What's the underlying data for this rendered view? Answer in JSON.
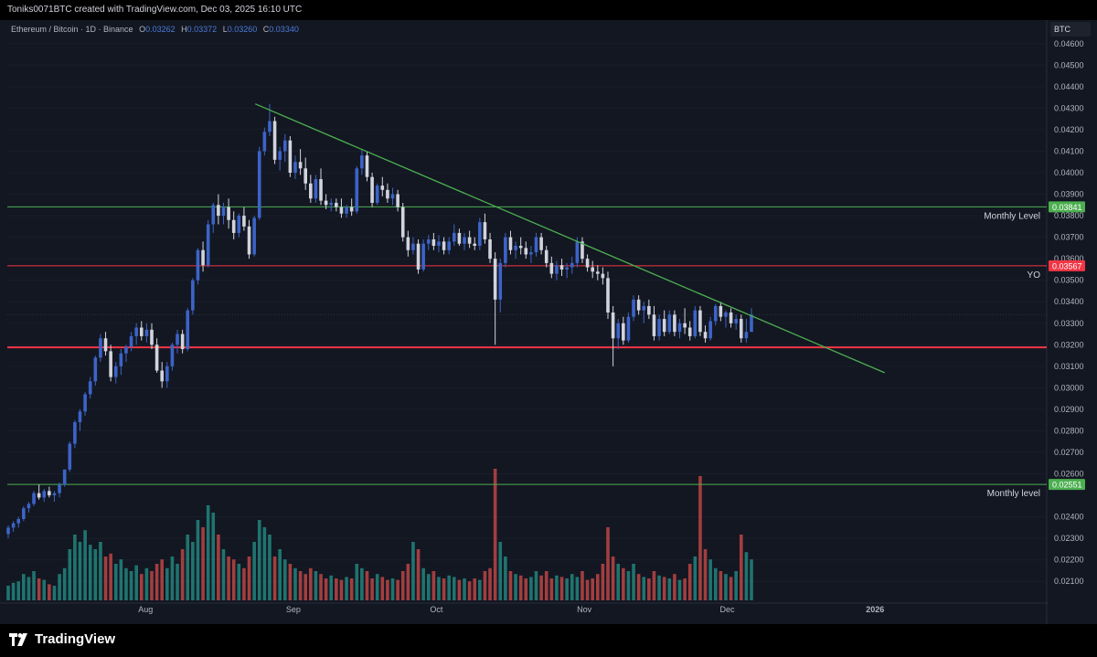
{
  "header": {
    "credit": "Toniks0071BTC created with TradingView.com, Dec 03, 2025 16:10 UTC"
  },
  "legend": {
    "symbol": "Ethereum / Bitcoin · 1D · Binance",
    "open_label": "O",
    "open": "0.03262",
    "high_label": "H",
    "high": "0.03372",
    "low_label": "L",
    "low": "0.03260",
    "close_label": "C",
    "close": "0.03340"
  },
  "brand": {
    "name": "TradingView"
  },
  "colors": {
    "background": "#131722",
    "up": "#3c64c8",
    "down": "#d1d4dc",
    "vol_up": "#26a69a",
    "vol_down": "#ef5350",
    "trend": "#4caf50"
  },
  "chart_data": {
    "type": "candlestick",
    "currency_label": "BTC",
    "ylim": [
      0.0205,
      0.0465
    ],
    "y_ticks": [
      "0.04600",
      "0.04500",
      "0.04400",
      "0.04300",
      "0.04200",
      "0.04100",
      "0.04000",
      "0.03900",
      "0.03800",
      "0.03700",
      "0.03600",
      "0.03500",
      "0.03400",
      "0.03300",
      "0.03200",
      "0.03100",
      "0.03000",
      "0.02900",
      "0.02800",
      "0.02700",
      "0.02600",
      "0.02400",
      "0.02300",
      "0.02200",
      "0.02100"
    ],
    "x_ticks": [
      {
        "label": "Aug",
        "date": "2025-08-01"
      },
      {
        "label": "Sep",
        "date": "2025-09-01"
      },
      {
        "label": "Oct",
        "date": "2025-10-01"
      },
      {
        "label": "Nov",
        "date": "2025-11-01"
      },
      {
        "label": "Dec",
        "date": "2025-12-01"
      },
      {
        "label": "2026",
        "date": "2026-01-01"
      }
    ],
    "x_start": "2025-07-03",
    "x_end": "2026-02-06",
    "levels": [
      {
        "name": "Monthly Level",
        "value": 0.03841,
        "label": "0.03841",
        "color": "#4caf50",
        "width": 1
      },
      {
        "name": "YO",
        "value": 0.03567,
        "label": "0.03567",
        "color": "#f23645",
        "width": 1
      },
      {
        "name": "",
        "value": 0.03188,
        "label": "",
        "color": "#f23645",
        "width": 2
      },
      {
        "name": "Monthly level",
        "value": 0.02551,
        "label": "0.02551",
        "color": "#4caf50",
        "width": 1
      }
    ],
    "trendline": {
      "start": {
        "date": "2025-08-24",
        "value": 0.0432
      },
      "end": {
        "date": "2026-01-03",
        "value": 0.0307
      }
    },
    "candles": [
      [
        0.0232,
        0.0236,
        0.023,
        0.0235
      ],
      [
        0.0235,
        0.0238,
        0.0233,
        0.0237
      ],
      [
        0.0237,
        0.024,
        0.0235,
        0.0239
      ],
      [
        0.0239,
        0.0245,
        0.0238,
        0.0244
      ],
      [
        0.0244,
        0.0247,
        0.0242,
        0.0246
      ],
      [
        0.0246,
        0.0252,
        0.0245,
        0.0251
      ],
      [
        0.0251,
        0.0255,
        0.0248,
        0.0249
      ],
      [
        0.0249,
        0.0253,
        0.0247,
        0.0252
      ],
      [
        0.0252,
        0.0254,
        0.0249,
        0.025
      ],
      [
        0.025,
        0.0252,
        0.0247,
        0.0251
      ],
      [
        0.0251,
        0.0256,
        0.0249,
        0.0255
      ],
      [
        0.0255,
        0.0262,
        0.0254,
        0.0262
      ],
      [
        0.0262,
        0.0275,
        0.0261,
        0.0274
      ],
      [
        0.0274,
        0.0285,
        0.0272,
        0.0284
      ],
      [
        0.0284,
        0.029,
        0.028,
        0.0289
      ],
      [
        0.0289,
        0.0298,
        0.0287,
        0.0297
      ],
      [
        0.0297,
        0.0305,
        0.0295,
        0.0303
      ],
      [
        0.0303,
        0.0315,
        0.0301,
        0.0314
      ],
      [
        0.0314,
        0.0325,
        0.0312,
        0.0323
      ],
      [
        0.0323,
        0.0326,
        0.0315,
        0.0317
      ],
      [
        0.0317,
        0.032,
        0.0303,
        0.0305
      ],
      [
        0.0305,
        0.0312,
        0.0302,
        0.031
      ],
      [
        0.031,
        0.0318,
        0.0306,
        0.0316
      ],
      [
        0.0316,
        0.032,
        0.0312,
        0.0319
      ],
      [
        0.0319,
        0.0326,
        0.0317,
        0.0324
      ],
      [
        0.0324,
        0.033,
        0.032,
        0.0328
      ],
      [
        0.0328,
        0.0331,
        0.0322,
        0.0324
      ],
      [
        0.0324,
        0.033,
        0.0321,
        0.0327
      ],
      [
        0.0327,
        0.033,
        0.0318,
        0.032
      ],
      [
        0.032,
        0.0323,
        0.0307,
        0.0308
      ],
      [
        0.0308,
        0.0312,
        0.03,
        0.0303
      ],
      [
        0.0303,
        0.0312,
        0.03,
        0.031
      ],
      [
        0.031,
        0.0321,
        0.0308,
        0.032
      ],
      [
        0.032,
        0.0327,
        0.0316,
        0.0325
      ],
      [
        0.0325,
        0.0327,
        0.0316,
        0.0318
      ],
      [
        0.0318,
        0.0337,
        0.0317,
        0.0336
      ],
      [
        0.0336,
        0.0351,
        0.0334,
        0.035
      ],
      [
        0.035,
        0.0365,
        0.0348,
        0.0364
      ],
      [
        0.0364,
        0.0368,
        0.0354,
        0.0357
      ],
      [
        0.0357,
        0.0378,
        0.0356,
        0.0376
      ],
      [
        0.0376,
        0.0386,
        0.0372,
        0.0385
      ],
      [
        0.0385,
        0.039,
        0.0376,
        0.038
      ],
      [
        0.038,
        0.0386,
        0.0376,
        0.0384
      ],
      [
        0.0384,
        0.0388,
        0.0374,
        0.0378
      ],
      [
        0.0378,
        0.0382,
        0.0369,
        0.0372
      ],
      [
        0.0372,
        0.0381,
        0.037,
        0.038
      ],
      [
        0.038,
        0.0384,
        0.0373,
        0.0375
      ],
      [
        0.0375,
        0.0378,
        0.036,
        0.0362
      ],
      [
        0.0362,
        0.038,
        0.0361,
        0.0379
      ],
      [
        0.0379,
        0.0412,
        0.0378,
        0.041
      ],
      [
        0.041,
        0.0421,
        0.0408,
        0.0419
      ],
      [
        0.0419,
        0.0432,
        0.0417,
        0.0424
      ],
      [
        0.0424,
        0.0426,
        0.0404,
        0.0406
      ],
      [
        0.0406,
        0.0412,
        0.0401,
        0.041
      ],
      [
        0.041,
        0.0418,
        0.0405,
        0.0415
      ],
      [
        0.0415,
        0.0417,
        0.0398,
        0.04
      ],
      [
        0.04,
        0.0408,
        0.0397,
        0.0405
      ],
      [
        0.0405,
        0.0411,
        0.0399,
        0.0402
      ],
      [
        0.0402,
        0.0407,
        0.0392,
        0.0395
      ],
      [
        0.0395,
        0.0399,
        0.0386,
        0.0388
      ],
      [
        0.0388,
        0.0399,
        0.0386,
        0.0397
      ],
      [
        0.0397,
        0.0402,
        0.0385,
        0.0387
      ],
      [
        0.0387,
        0.039,
        0.0383,
        0.0385
      ],
      [
        0.0385,
        0.0388,
        0.0382,
        0.0386
      ],
      [
        0.0386,
        0.0388,
        0.0382,
        0.0384
      ],
      [
        0.0384,
        0.0388,
        0.0379,
        0.0381
      ],
      [
        0.0381,
        0.0385,
        0.0379,
        0.0384
      ],
      [
        0.0384,
        0.0388,
        0.038,
        0.0382
      ],
      [
        0.0382,
        0.0403,
        0.0381,
        0.0402
      ],
      [
        0.0402,
        0.0411,
        0.0399,
        0.0408
      ],
      [
        0.0408,
        0.041,
        0.0396,
        0.0398
      ],
      [
        0.0398,
        0.04,
        0.0384,
        0.0386
      ],
      [
        0.0386,
        0.0395,
        0.0385,
        0.0394
      ],
      [
        0.0394,
        0.0398,
        0.0389,
        0.0392
      ],
      [
        0.0392,
        0.0395,
        0.0386,
        0.0388
      ],
      [
        0.0388,
        0.0393,
        0.0385,
        0.039
      ],
      [
        0.039,
        0.0392,
        0.0382,
        0.0384
      ],
      [
        0.0384,
        0.0386,
        0.0368,
        0.037
      ],
      [
        0.037,
        0.0373,
        0.0361,
        0.0364
      ],
      [
        0.0364,
        0.037,
        0.0362,
        0.0367
      ],
      [
        0.0367,
        0.0369,
        0.0353,
        0.0355
      ],
      [
        0.0355,
        0.0369,
        0.0354,
        0.0367
      ],
      [
        0.0367,
        0.0371,
        0.0364,
        0.0369
      ],
      [
        0.0369,
        0.0372,
        0.0364,
        0.0366
      ],
      [
        0.0366,
        0.0371,
        0.0363,
        0.0368
      ],
      [
        0.0368,
        0.037,
        0.0362,
        0.0364
      ],
      [
        0.0364,
        0.037,
        0.0362,
        0.0368
      ],
      [
        0.0368,
        0.0376,
        0.0366,
        0.0372
      ],
      [
        0.0372,
        0.0374,
        0.0366,
        0.0367
      ],
      [
        0.0367,
        0.0372,
        0.0364,
        0.037
      ],
      [
        0.037,
        0.0373,
        0.0365,
        0.0367
      ],
      [
        0.0367,
        0.037,
        0.0364,
        0.0366
      ],
      [
        0.0366,
        0.0379,
        0.0364,
        0.0377
      ],
      [
        0.0377,
        0.0381,
        0.0367,
        0.0369
      ],
      [
        0.0369,
        0.0372,
        0.0358,
        0.036
      ],
      [
        0.036,
        0.0363,
        0.032,
        0.0341
      ],
      [
        0.0341,
        0.036,
        0.0335,
        0.0358
      ],
      [
        0.0358,
        0.0372,
        0.0356,
        0.037
      ],
      [
        0.037,
        0.0373,
        0.0362,
        0.0364
      ],
      [
        0.0364,
        0.0368,
        0.036,
        0.0366
      ],
      [
        0.0366,
        0.037,
        0.0362,
        0.0365
      ],
      [
        0.0365,
        0.0368,
        0.036,
        0.0362
      ],
      [
        0.0362,
        0.0366,
        0.0358,
        0.0363
      ],
      [
        0.0363,
        0.0372,
        0.0361,
        0.037
      ],
      [
        0.037,
        0.0372,
        0.0362,
        0.0364
      ],
      [
        0.0364,
        0.0366,
        0.0356,
        0.0358
      ],
      [
        0.0358,
        0.0361,
        0.0351,
        0.0353
      ],
      [
        0.0353,
        0.0359,
        0.035,
        0.0357
      ],
      [
        0.0357,
        0.036,
        0.0352,
        0.0355
      ],
      [
        0.0355,
        0.0358,
        0.0351,
        0.0356
      ],
      [
        0.0356,
        0.0361,
        0.0353,
        0.0358
      ],
      [
        0.0358,
        0.037,
        0.0356,
        0.0368
      ],
      [
        0.0368,
        0.037,
        0.0358,
        0.036
      ],
      [
        0.036,
        0.0362,
        0.0354,
        0.0356
      ],
      [
        0.0356,
        0.0359,
        0.0351,
        0.0354
      ],
      [
        0.0354,
        0.0357,
        0.035,
        0.0353
      ],
      [
        0.0353,
        0.0356,
        0.0348,
        0.0351
      ],
      [
        0.0351,
        0.0354,
        0.0332,
        0.0335
      ],
      [
        0.0335,
        0.0338,
        0.031,
        0.0323
      ],
      [
        0.0323,
        0.0332,
        0.0318,
        0.033
      ],
      [
        0.033,
        0.0333,
        0.032,
        0.0322
      ],
      [
        0.0322,
        0.0335,
        0.0321,
        0.0333
      ],
      [
        0.0333,
        0.0343,
        0.0331,
        0.0341
      ],
      [
        0.0341,
        0.0343,
        0.0334,
        0.0336
      ],
      [
        0.0336,
        0.034,
        0.033,
        0.0338
      ],
      [
        0.0338,
        0.0341,
        0.0332,
        0.0334
      ],
      [
        0.0334,
        0.0338,
        0.0322,
        0.0324
      ],
      [
        0.0324,
        0.0334,
        0.0322,
        0.0332
      ],
      [
        0.0332,
        0.0336,
        0.0324,
        0.0326
      ],
      [
        0.0326,
        0.0336,
        0.0325,
        0.0334
      ],
      [
        0.0334,
        0.0336,
        0.0324,
        0.0326
      ],
      [
        0.0326,
        0.0332,
        0.0323,
        0.033
      ],
      [
        0.033,
        0.0337,
        0.0325,
        0.0328
      ],
      [
        0.0328,
        0.0331,
        0.0322,
        0.0324
      ],
      [
        0.0324,
        0.0338,
        0.0323,
        0.0336
      ],
      [
        0.0336,
        0.0338,
        0.0324,
        0.0326
      ],
      [
        0.0326,
        0.0329,
        0.0321,
        0.0323
      ],
      [
        0.0323,
        0.0333,
        0.0322,
        0.0331
      ],
      [
        0.0331,
        0.0339,
        0.0329,
        0.0338
      ],
      [
        0.0338,
        0.034,
        0.0331,
        0.0333
      ],
      [
        0.0333,
        0.0336,
        0.0328,
        0.0335
      ],
      [
        0.0335,
        0.0337,
        0.0328,
        0.033
      ],
      [
        0.033,
        0.0334,
        0.0327,
        0.0332
      ],
      [
        0.0332,
        0.0334,
        0.0321,
        0.0323
      ],
      [
        0.0323,
        0.0332,
        0.0321,
        0.0326
      ],
      [
        0.0326,
        0.0337,
        0.0326,
        0.0334
      ]
    ],
    "volumes": [
      0.1,
      0.12,
      0.13,
      0.18,
      0.16,
      0.2,
      0.15,
      0.14,
      0.11,
      0.1,
      0.18,
      0.22,
      0.35,
      0.45,
      0.4,
      0.48,
      0.38,
      0.35,
      0.4,
      0.3,
      0.32,
      0.25,
      0.28,
      0.22,
      0.2,
      0.24,
      0.18,
      0.22,
      0.2,
      0.25,
      0.28,
      0.22,
      0.3,
      0.25,
      0.35,
      0.45,
      0.4,
      0.55,
      0.5,
      0.65,
      0.6,
      0.45,
      0.35,
      0.3,
      0.28,
      0.25,
      0.22,
      0.3,
      0.4,
      0.55,
      0.5,
      0.45,
      0.3,
      0.35,
      0.28,
      0.25,
      0.22,
      0.2,
      0.18,
      0.22,
      0.2,
      0.18,
      0.15,
      0.17,
      0.15,
      0.14,
      0.16,
      0.15,
      0.25,
      0.22,
      0.2,
      0.15,
      0.18,
      0.16,
      0.14,
      0.15,
      0.14,
      0.2,
      0.25,
      0.4,
      0.35,
      0.22,
      0.18,
      0.2,
      0.16,
      0.15,
      0.17,
      0.16,
      0.14,
      0.15,
      0.13,
      0.15,
      0.14,
      0.2,
      0.22,
      0.9,
      0.4,
      0.3,
      0.2,
      0.18,
      0.17,
      0.15,
      0.16,
      0.2,
      0.17,
      0.2,
      0.15,
      0.17,
      0.16,
      0.15,
      0.18,
      0.16,
      0.2,
      0.14,
      0.15,
      0.18,
      0.25,
      0.5,
      0.3,
      0.25,
      0.22,
      0.2,
      0.25,
      0.18,
      0.16,
      0.15,
      0.2,
      0.17,
      0.16,
      0.15,
      0.18,
      0.14,
      0.15,
      0.25,
      0.3,
      0.85,
      0.35,
      0.28,
      0.22,
      0.2,
      0.18,
      0.16,
      0.2,
      0.45,
      0.33,
      0.28
    ]
  }
}
